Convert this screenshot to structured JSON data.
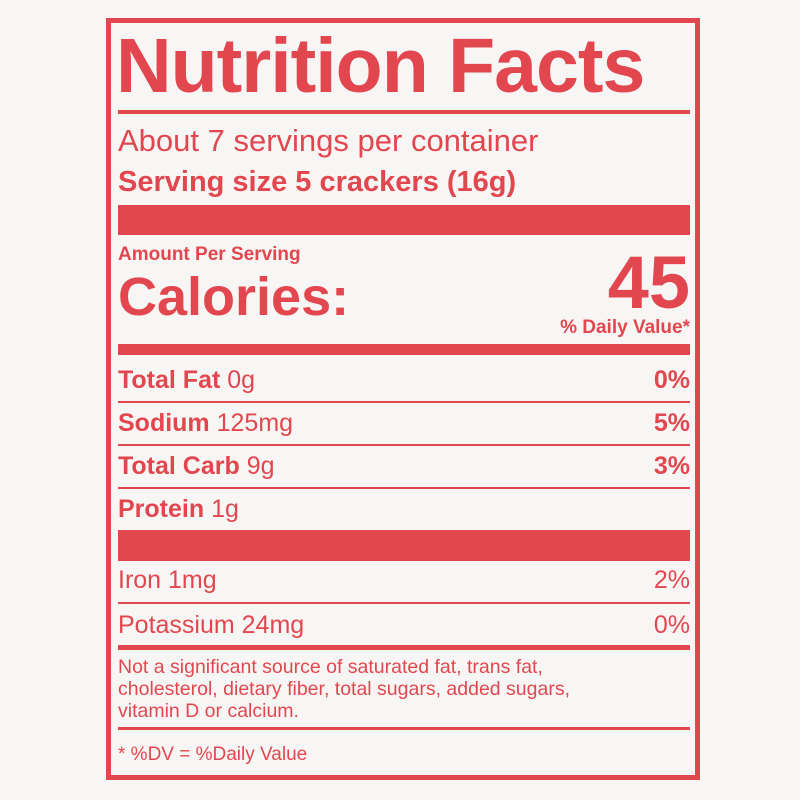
{
  "label": {
    "title": "Nutrition Facts",
    "servings": "About 7 servings per container",
    "serving_size": "Serving size 5 crackers (16g)",
    "amount_per_serving": "Amount Per Serving",
    "calories": {
      "label": "Calories:",
      "value": 45
    },
    "daily_value_header": "% Daily Value*",
    "nutrients": [
      {
        "name": "Total Fat",
        "amount": "0g",
        "dv": "0%"
      },
      {
        "name": "Sodium",
        "amount": "125mg",
        "dv": "5%"
      },
      {
        "name": "Total Carb",
        "amount": "9g",
        "dv": "3%"
      },
      {
        "name": "Protein",
        "amount": "1g"
      }
    ],
    "minerals": [
      {
        "name": "Iron 1mg",
        "dv": "2%"
      },
      {
        "name": "Potassium 24mg",
        "dv": "0%"
      }
    ],
    "footnote": [
      "Not a significant source of saturated fat, trans fat,",
      "cholesterol, dietary fiber, total sugars, added sugars,",
      "vitamin D or calcium."
    ],
    "dv_note": "* %DV = %Daily Value"
  }
}
